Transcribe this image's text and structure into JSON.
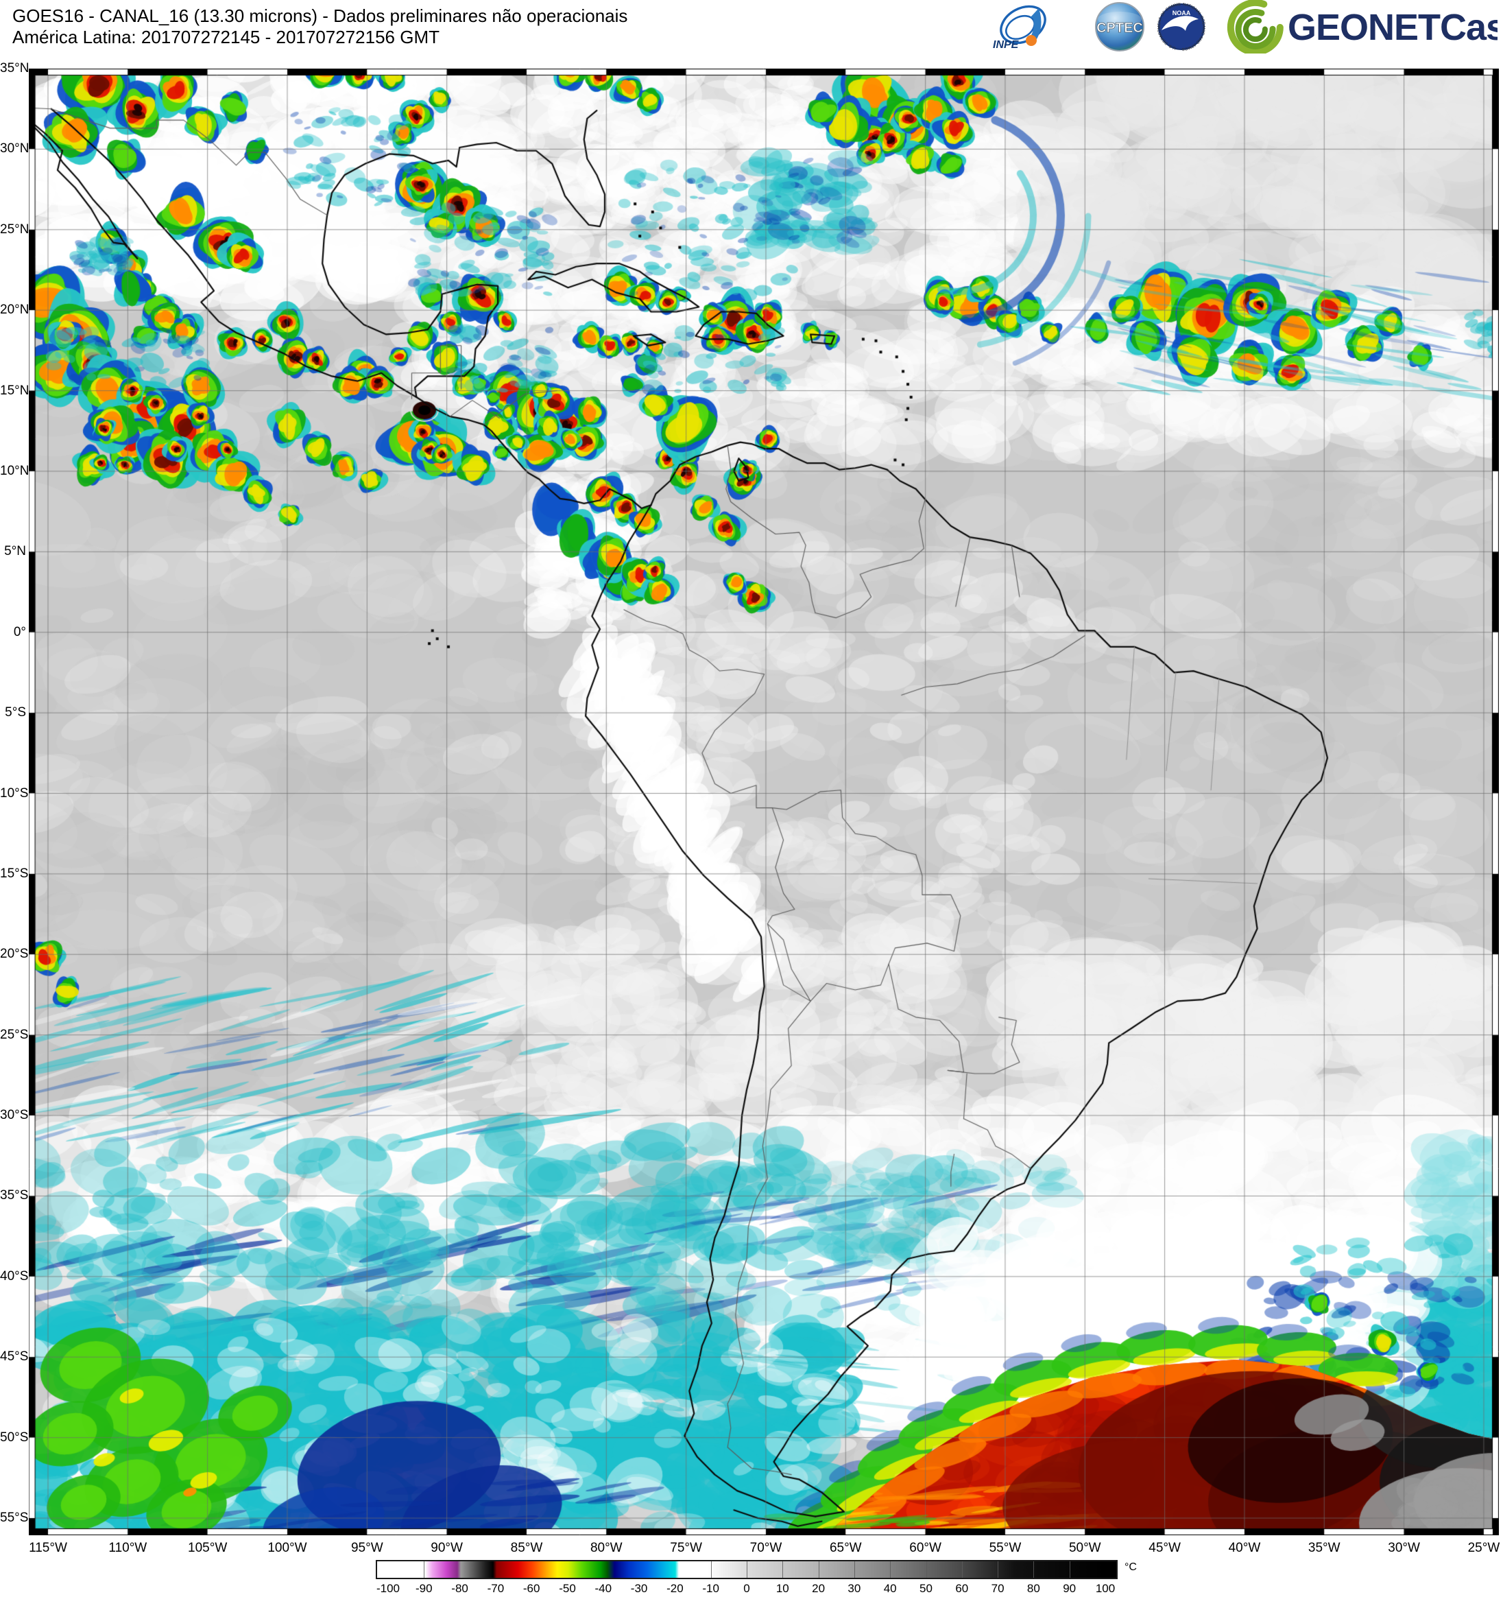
{
  "header": {
    "title_line1": "GOES16 - CANAL_16 (13.30 microns) - Dados preliminares não operacionais",
    "title_line2": "América Latina: 201707272145 - 201707272156 GMT",
    "logos": [
      {
        "name": "inpe",
        "label": "INPE"
      },
      {
        "name": "cptec",
        "label": "CPTEC"
      },
      {
        "name": "noaa",
        "label": "NOAA",
        "ring_text_top": "NATIONAL OCEANIC AND ATMOSPHERIC ADMINISTRATION",
        "ring_text_bottom": "U.S. DEPARTMENT OF COMMERCE"
      },
      {
        "name": "geonetcast",
        "label": "GEONETCast"
      }
    ],
    "brand_colors": {
      "geonetcast_text": "#1e2f63",
      "geonetcast_arc": "#82ae2c",
      "noaa_circle": "#1f3c8c",
      "inpe_blue": "#1b63b5",
      "inpe_orange": "#f08122"
    }
  },
  "map": {
    "lat_labels": [
      "35°N",
      "30°N",
      "25°N",
      "20°N",
      "15°N",
      "10°N",
      "5°N",
      "0°",
      "5°S",
      "10°S",
      "15°S",
      "20°S",
      "25°S",
      "30°S",
      "35°S",
      "40°S",
      "45°S",
      "50°S",
      "55°S"
    ],
    "lon_labels": [
      "115°W",
      "110°W",
      "105°W",
      "100°W",
      "95°W",
      "90°W",
      "85°W",
      "80°W",
      "75°W",
      "70°W",
      "65°W",
      "60°W",
      "55°W",
      "50°W",
      "45°W",
      "40°W",
      "35°W",
      "30°W",
      "25°W"
    ]
  },
  "colorbar": {
    "unit": "°C",
    "tick_values": [
      -100,
      -90,
      -80,
      -70,
      -60,
      -50,
      -40,
      -30,
      -20,
      -10,
      0,
      10,
      20,
      30,
      40,
      50,
      60,
      70,
      80,
      90,
      100
    ],
    "gradient_stops": [
      [
        -100,
        "#ffffff"
      ],
      [
        -90,
        "#ffffff"
      ],
      [
        -88,
        "#f0a6f0"
      ],
      [
        -84,
        "#cb46cb"
      ],
      [
        -81,
        "#8a2d8a"
      ],
      [
        -80,
        "#9a9a9a"
      ],
      [
        -73,
        "#1c1c1c"
      ],
      [
        -71,
        "#000000"
      ],
      [
        -70,
        "#8a0000"
      ],
      [
        -64,
        "#e00000"
      ],
      [
        -60,
        "#ff4400"
      ],
      [
        -56,
        "#ffa800"
      ],
      [
        -53,
        "#fff200"
      ],
      [
        -50,
        "#d8f000"
      ],
      [
        -46,
        "#5ad600"
      ],
      [
        -41,
        "#00a000"
      ],
      [
        -39,
        "#005a00"
      ],
      [
        -37,
        "#000080"
      ],
      [
        -33,
        "#0032c8"
      ],
      [
        -28,
        "#0064e6"
      ],
      [
        -23,
        "#00b4e6"
      ],
      [
        -20,
        "#00e0e0"
      ],
      [
        -19,
        "#ffffff"
      ],
      [
        -11,
        "#ffffff"
      ],
      [
        0,
        "#dcdcdc"
      ],
      [
        20,
        "#b4b4b4"
      ],
      [
        40,
        "#828282"
      ],
      [
        60,
        "#4a4a4a"
      ],
      [
        75,
        "#111111"
      ],
      [
        100,
        "#000000"
      ]
    ]
  }
}
